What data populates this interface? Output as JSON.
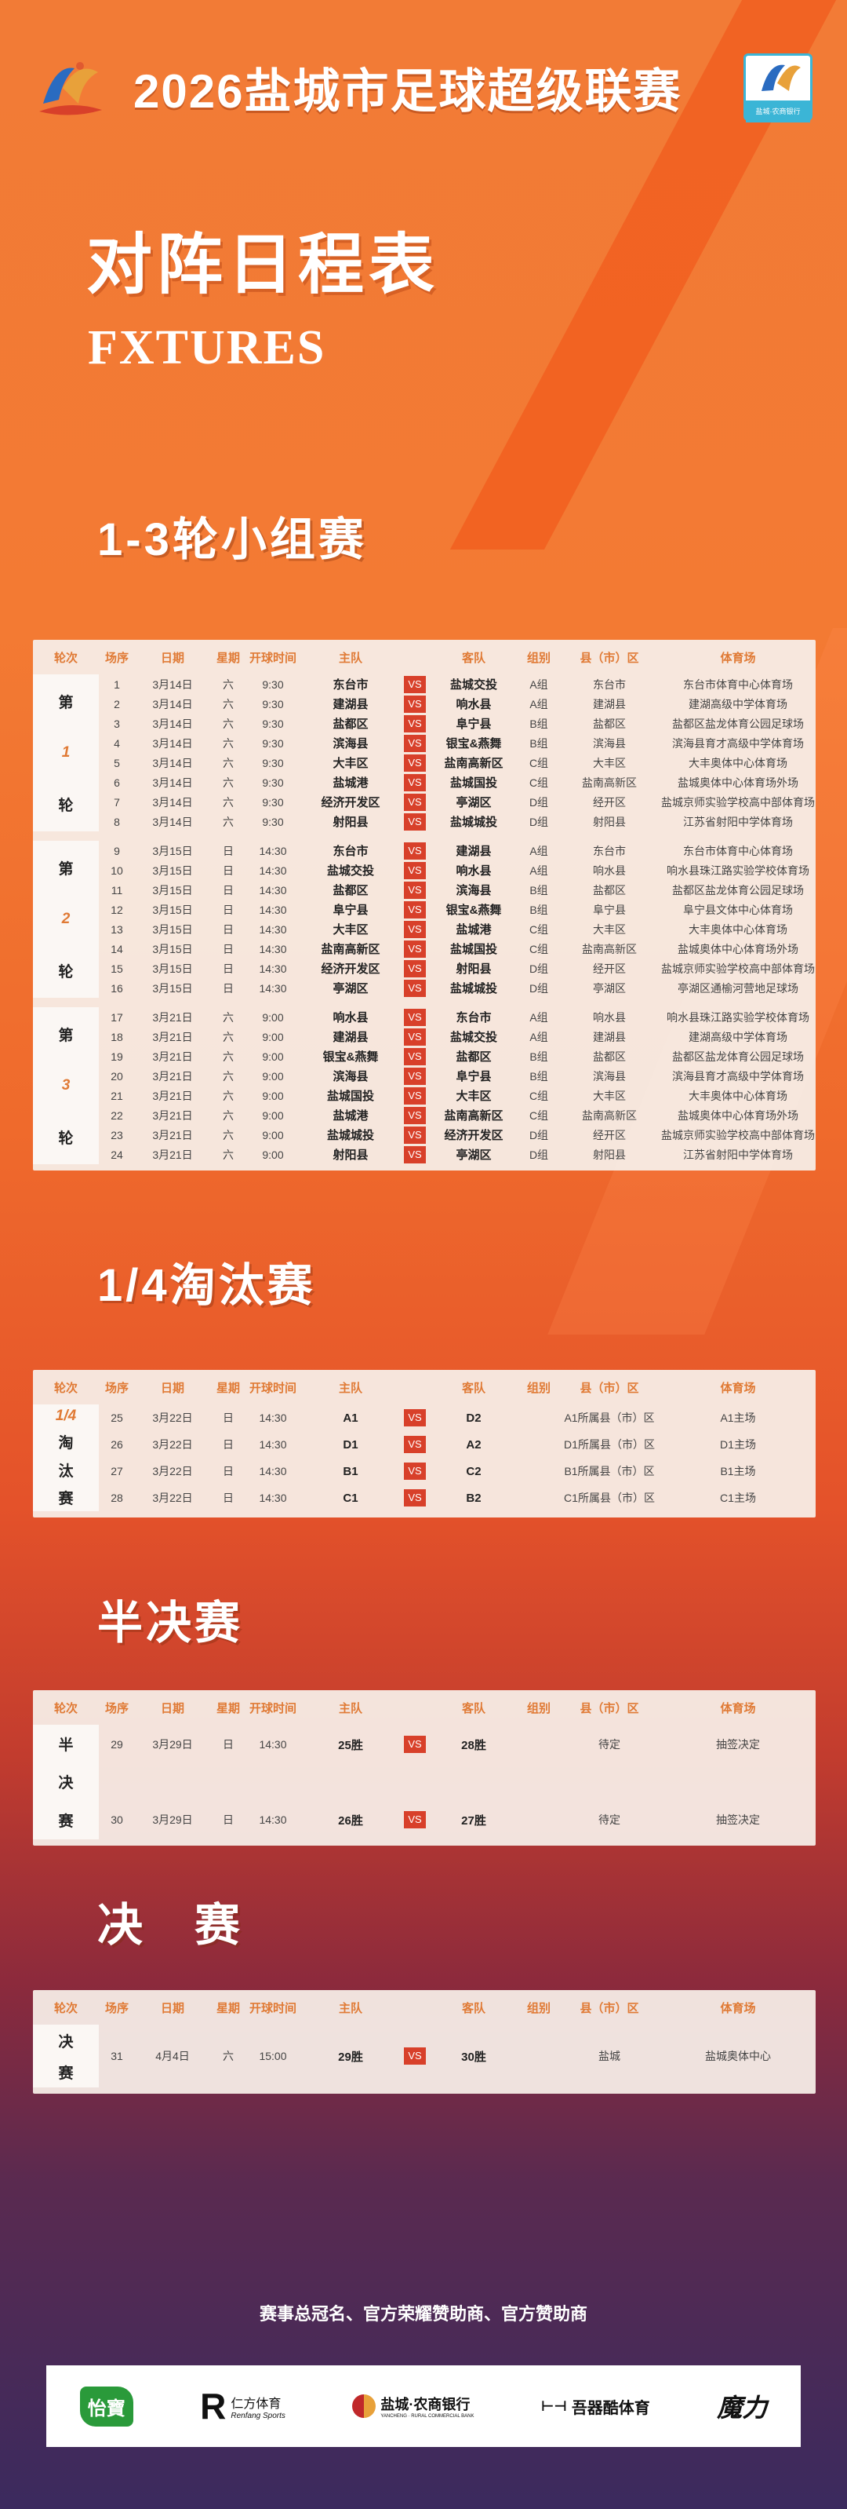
{
  "header": {
    "title": "2026盐城市足球超级联赛",
    "logo_left_icon": "league-mascot-logo",
    "logo_right_icon": "league-sponsor-badge",
    "logo_right_text": "盐城·农商银行"
  },
  "page_title": "对阵日程表",
  "page_subtitle": "FXTURES",
  "columns": [
    "轮次",
    "场序",
    "日期",
    "星期",
    "开球时间",
    "主队",
    "",
    "客队",
    "组别",
    "县（市）区",
    "体育场"
  ],
  "vs_label": "VS",
  "colors": {
    "accent": "#e07a35",
    "vs": "#d8402a",
    "bg_top": "#f27b36",
    "bg_bottom": "#3b2a5e"
  },
  "sections": [
    {
      "heading": "1-3轮小组赛",
      "groups": [
        {
          "round": [
            "第",
            "1",
            "轮"
          ],
          "rows": [
            [
              "1",
              "3月14日",
              "六",
              "9:30",
              "东台市",
              "盐城交投",
              "A组",
              "东台市",
              "东台市体育中心体育场"
            ],
            [
              "2",
              "3月14日",
              "六",
              "9:30",
              "建湖县",
              "响水县",
              "A组",
              "建湖县",
              "建湖高级中学体育场"
            ],
            [
              "3",
              "3月14日",
              "六",
              "9:30",
              "盐都区",
              "阜宁县",
              "B组",
              "盐都区",
              "盐都区盐龙体育公园足球场"
            ],
            [
              "4",
              "3月14日",
              "六",
              "9:30",
              "滨海县",
              "银宝&燕舞",
              "B组",
              "滨海县",
              "滨海县育才高级中学体育场"
            ],
            [
              "5",
              "3月14日",
              "六",
              "9:30",
              "大丰区",
              "盐南高新区",
              "C组",
              "大丰区",
              "大丰奥体中心体育场"
            ],
            [
              "6",
              "3月14日",
              "六",
              "9:30",
              "盐城港",
              "盐城国投",
              "C组",
              "盐南高新区",
              "盐城奥体中心体育场外场"
            ],
            [
              "7",
              "3月14日",
              "六",
              "9:30",
              "经济开发区",
              "亭湖区",
              "D组",
              "经开区",
              "盐城京师实验学校高中部体育场"
            ],
            [
              "8",
              "3月14日",
              "六",
              "9:30",
              "射阳县",
              "盐城城投",
              "D组",
              "射阳县",
              "江苏省射阳中学体育场"
            ]
          ]
        },
        {
          "round": [
            "第",
            "2",
            "轮"
          ],
          "rows": [
            [
              "9",
              "3月15日",
              "日",
              "14:30",
              "东台市",
              "建湖县",
              "A组",
              "东台市",
              "东台市体育中心体育场"
            ],
            [
              "10",
              "3月15日",
              "日",
              "14:30",
              "盐城交投",
              "响水县",
              "A组",
              "响水县",
              "响水县珠江路实验学校体育场"
            ],
            [
              "11",
              "3月15日",
              "日",
              "14:30",
              "盐都区",
              "滨海县",
              "B组",
              "盐都区",
              "盐都区盐龙体育公园足球场"
            ],
            [
              "12",
              "3月15日",
              "日",
              "14:30",
              "阜宁县",
              "银宝&燕舞",
              "B组",
              "阜宁县",
              "阜宁县文体中心体育场"
            ],
            [
              "13",
              "3月15日",
              "日",
              "14:30",
              "大丰区",
              "盐城港",
              "C组",
              "大丰区",
              "大丰奥体中心体育场"
            ],
            [
              "14",
              "3月15日",
              "日",
              "14:30",
              "盐南高新区",
              "盐城国投",
              "C组",
              "盐南高新区",
              "盐城奥体中心体育场外场"
            ],
            [
              "15",
              "3月15日",
              "日",
              "14:30",
              "经济开发区",
              "射阳县",
              "D组",
              "经开区",
              "盐城京师实验学校高中部体育场"
            ],
            [
              "16",
              "3月15日",
              "日",
              "14:30",
              "亭湖区",
              "盐城城投",
              "D组",
              "亭湖区",
              "亭湖区通榆河营地足球场"
            ]
          ]
        },
        {
          "round": [
            "第",
            "3",
            "轮"
          ],
          "rows": [
            [
              "17",
              "3月21日",
              "六",
              "9:00",
              "响水县",
              "东台市",
              "A组",
              "响水县",
              "响水县珠江路实验学校体育场"
            ],
            [
              "18",
              "3月21日",
              "六",
              "9:00",
              "建湖县",
              "盐城交投",
              "A组",
              "建湖县",
              "建湖高级中学体育场"
            ],
            [
              "19",
              "3月21日",
              "六",
              "9:00",
              "银宝&燕舞",
              "盐都区",
              "B组",
              "盐都区",
              "盐都区盐龙体育公园足球场"
            ],
            [
              "20",
              "3月21日",
              "六",
              "9:00",
              "滨海县",
              "阜宁县",
              "B组",
              "滨海县",
              "滨海县育才高级中学体育场"
            ],
            [
              "21",
              "3月21日",
              "六",
              "9:00",
              "盐城国投",
              "大丰区",
              "C组",
              "大丰区",
              "大丰奥体中心体育场"
            ],
            [
              "22",
              "3月21日",
              "六",
              "9:00",
              "盐城港",
              "盐南高新区",
              "C组",
              "盐南高新区",
              "盐城奥体中心体育场外场"
            ],
            [
              "23",
              "3月21日",
              "六",
              "9:00",
              "盐城城投",
              "经济开发区",
              "D组",
              "经开区",
              "盐城京师实验学校高中部体育场"
            ],
            [
              "24",
              "3月21日",
              "六",
              "9:00",
              "射阳县",
              "亭湖区",
              "D组",
              "射阳县",
              "江苏省射阳中学体育场"
            ]
          ]
        }
      ]
    },
    {
      "heading": "1/4淘汰赛",
      "groups": [
        {
          "round": [
            "1/4",
            "淘",
            "汰",
            "赛"
          ],
          "rows": [
            [
              "25",
              "3月22日",
              "日",
              "14:30",
              "A1",
              "D2",
              "",
              "A1所属县（市）区",
              "A1主场"
            ],
            [
              "26",
              "3月22日",
              "日",
              "14:30",
              "D1",
              "A2",
              "",
              "D1所属县（市）区",
              "D1主场"
            ],
            [
              "27",
              "3月22日",
              "日",
              "14:30",
              "B1",
              "C2",
              "",
              "B1所属县（市）区",
              "B1主场"
            ],
            [
              "28",
              "3月22日",
              "日",
              "14:30",
              "C1",
              "B2",
              "",
              "C1所属县（市）区",
              "C1主场"
            ]
          ]
        }
      ]
    },
    {
      "heading": "半决赛",
      "groups": [
        {
          "round": [
            "半",
            "决",
            "赛"
          ],
          "rows": [
            [
              "29",
              "3月29日",
              "日",
              "14:30",
              "25胜",
              "28胜",
              "",
              "待定",
              "抽签决定"
            ],
            [
              "30",
              "3月29日",
              "日",
              "14:30",
              "26胜",
              "27胜",
              "",
              "待定",
              "抽签决定"
            ]
          ]
        }
      ]
    },
    {
      "heading": "决　赛",
      "groups": [
        {
          "round": [
            "决",
            "赛"
          ],
          "rows": [
            [
              "31",
              "4月4日",
              "六",
              "15:00",
              "29胜",
              "30胜",
              "",
              "盐城",
              "盐城奥体中心"
            ]
          ]
        }
      ]
    }
  ],
  "sponsors": {
    "title": "赛事总冠名、官方荣耀赞助商、官方赞助商",
    "items": [
      {
        "name": "怡寶",
        "icon": "yibao-logo"
      },
      {
        "name": "仁方体育",
        "sub": "Renfang Sports",
        "icon": "renfang-r-logo"
      },
      {
        "name": "盐城·农商银行",
        "sub": "YANCHENG · RURAL COMMERCIAL BANK",
        "icon": "bank-logo"
      },
      {
        "name": "吾器酷体育",
        "icon": "wuqiku-logo"
      },
      {
        "name": "魔力",
        "icon": "moli-logo"
      }
    ]
  }
}
